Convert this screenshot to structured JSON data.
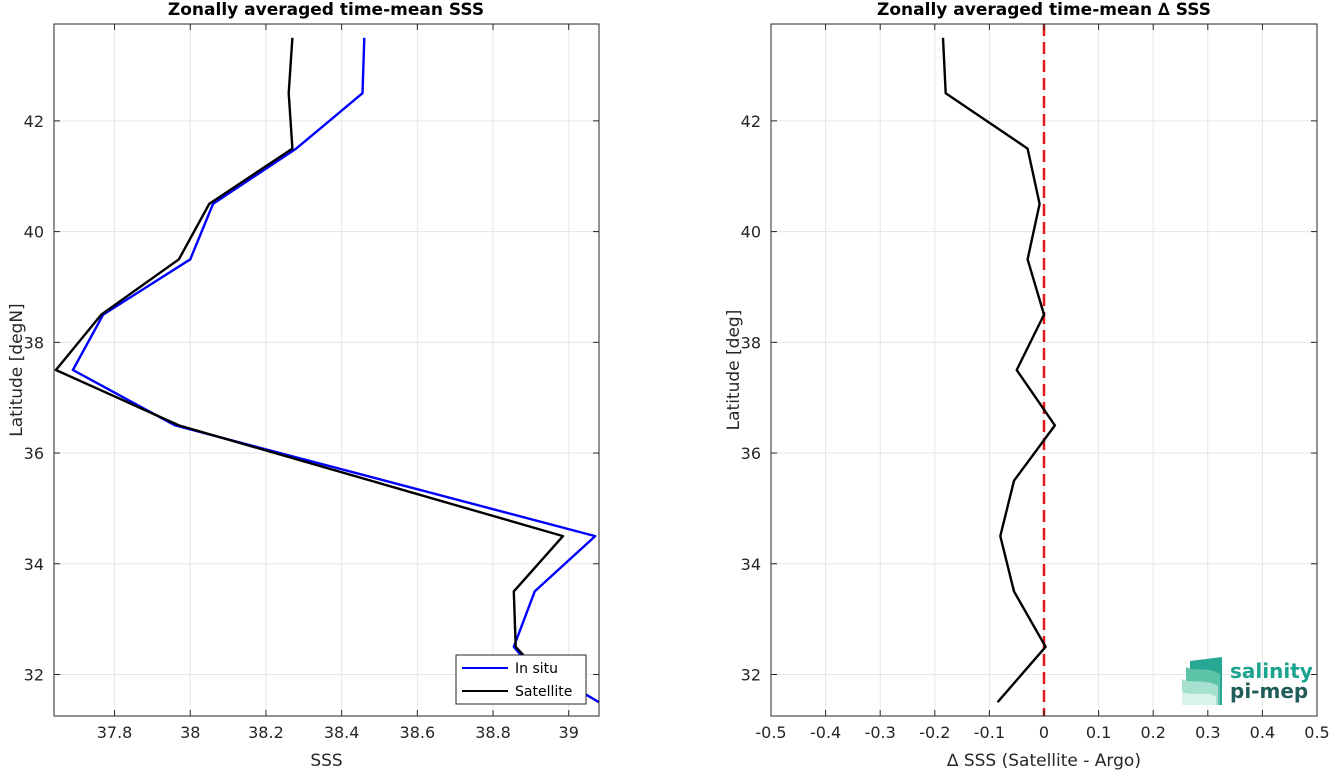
{
  "chart_data": [
    {
      "type": "line",
      "title": "Zonally averaged time-mean SSS",
      "xlabel": "SSS",
      "ylabel": "Latitude [degN]",
      "xlim": [
        37.64,
        39.08
      ],
      "ylim": [
        31.25,
        43.75
      ],
      "xticks": [
        37.8,
        38,
        38.2,
        38.4,
        38.6,
        38.8,
        39
      ],
      "xtick_labels": [
        "37.8",
        "38",
        "38.2",
        "38.4",
        "38.6",
        "38.8",
        "39"
      ],
      "yticks": [
        32,
        34,
        36,
        38,
        40,
        42
      ],
      "ytick_labels": [
        "32",
        "34",
        "36",
        "38",
        "40",
        "42"
      ],
      "grid": true,
      "legend_position": "bottom-right",
      "series": [
        {
          "name": "In situ",
          "color": "#0000ff",
          "points": [
            [
              39.08,
              31.5
            ],
            [
              38.88,
              32.3
            ],
            [
              38.855,
              32.5
            ],
            [
              38.91,
              33.5
            ],
            [
              39.07,
              34.5
            ],
            [
              37.96,
              36.5
            ],
            [
              37.69,
              37.5
            ],
            [
              37.77,
              38.5
            ],
            [
              38.0,
              39.5
            ],
            [
              38.06,
              40.5
            ],
            [
              38.28,
              41.5
            ],
            [
              38.455,
              42.5
            ],
            [
              38.46,
              43.5
            ]
          ]
        },
        {
          "name": "Satellite",
          "color": "#000000",
          "points": [
            [
              38.88,
              32.35
            ],
            [
              38.86,
              32.5
            ],
            [
              38.855,
              33.5
            ],
            [
              38.985,
              34.5
            ],
            [
              37.97,
              36.5
            ],
            [
              37.645,
              37.5
            ],
            [
              37.765,
              38.5
            ],
            [
              37.97,
              39.5
            ],
            [
              38.05,
              40.5
            ],
            [
              38.27,
              41.5
            ],
            [
              38.26,
              42.5
            ],
            [
              38.27,
              43.5
            ]
          ]
        }
      ]
    },
    {
      "type": "line",
      "title": "Zonally averaged time-mean ∆ SSS",
      "xlabel": "∆ SSS (Satellite - Argo)",
      "ylabel": "Latitude [deg]",
      "xlim": [
        -0.5,
        0.5
      ],
      "ylim": [
        31.25,
        43.75
      ],
      "xticks": [
        -0.5,
        -0.4,
        -0.3,
        -0.2,
        -0.1,
        0,
        0.1,
        0.2,
        0.3,
        0.4,
        0.5
      ],
      "xtick_labels": [
        "-0.5",
        "-0.4",
        "-0.3",
        "-0.2",
        "-0.1",
        "0",
        "0.1",
        "0.2",
        "0.3",
        "0.4",
        "0.5"
      ],
      "yticks": [
        32,
        34,
        36,
        38,
        40,
        42
      ],
      "ytick_labels": [
        "32",
        "34",
        "36",
        "38",
        "40",
        "42"
      ],
      "grid": true,
      "reference_line": {
        "x": 0,
        "color": "#e31a1c",
        "style": "dashed"
      },
      "series": [
        {
          "color": "#000000",
          "points": [
            [
              -0.085,
              31.5
            ],
            [
              0.003,
              32.5
            ],
            [
              -0.055,
              33.5
            ],
            [
              -0.08,
              34.5
            ],
            [
              -0.055,
              35.5
            ],
            [
              0.02,
              36.5
            ],
            [
              -0.05,
              37.5
            ],
            [
              0.0,
              38.5
            ],
            [
              -0.03,
              39.5
            ],
            [
              -0.008,
              40.5
            ],
            [
              -0.03,
              41.5
            ],
            [
              -0.18,
              42.5
            ],
            [
              -0.185,
              43.5
            ]
          ]
        }
      ]
    }
  ],
  "logo": {
    "line1": "salinity",
    "line2": "pi-mep",
    "color": "#1aa38f"
  }
}
